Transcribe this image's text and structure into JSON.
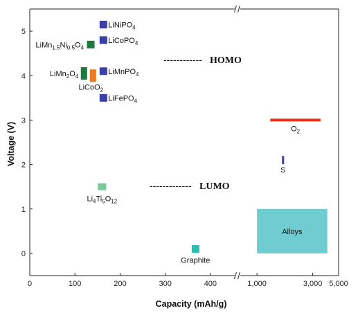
{
  "chart_data": {
    "type": "scatter",
    "xlabel": "Capacity (mAh/g)",
    "ylabel": "Voltage (V)",
    "ylim": [
      -0.5,
      5.5
    ],
    "y_ticks": [
      "0",
      "1",
      "2",
      "3",
      "4",
      "5"
    ],
    "x_ticks_linear": [
      "0",
      "100",
      "200",
      "300",
      "400"
    ],
    "x_ticks_log": [
      "1,000",
      "3,000",
      "5,000"
    ],
    "xlim_linear": [
      0,
      460
    ],
    "xlim_log": [
      700,
      5000
    ],
    "axis_break": true,
    "points": [
      {
        "id": "linipo4",
        "x": 163,
        "y": 5.15,
        "color": "#3b3fa6",
        "parts": [
          "LiNiPO",
          "4",
          ""
        ]
      },
      {
        "id": "licopo4",
        "x": 163,
        "y": 4.8,
        "color": "#3b3fa6",
        "parts": [
          "LiCoPO",
          "4",
          ""
        ]
      },
      {
        "id": "limnpo4",
        "x": 163,
        "y": 4.1,
        "color": "#3b3fa6",
        "parts": [
          "LiMnPO",
          "4",
          ""
        ]
      },
      {
        "id": "lifepo4",
        "x": 163,
        "y": 3.5,
        "color": "#3b3fa6",
        "parts": [
          "LiFePO",
          "4",
          ""
        ]
      },
      {
        "id": "limn15ni05o4",
        "x": 135,
        "y": 4.7,
        "color": "#1b7a3e",
        "parts": [
          "LiMn",
          "1.5",
          "Ni",
          "0.5",
          "O",
          "4",
          ""
        ]
      },
      {
        "id": "limn2o4",
        "x": 120,
        "y": 4.05,
        "color": "#1b7a3e",
        "parts": [
          "LiMn",
          "2",
          "O",
          "4",
          ""
        ]
      },
      {
        "id": "licoo2",
        "x": 140,
        "y": 4.0,
        "color": "#ee7a22",
        "parts": [
          "LiCoO",
          "2",
          ""
        ]
      },
      {
        "id": "li4ti5o12",
        "x": 160,
        "y": 1.5,
        "color": "#7bc898",
        "parts": [
          "Li",
          "4",
          "Ti",
          "5",
          "O",
          "12",
          ""
        ]
      },
      {
        "id": "graphite",
        "x": 367,
        "y": 0.1,
        "color": "#2bbfb3",
        "parts": [
          "Graphite"
        ]
      },
      {
        "id": "sulfur",
        "x": 1672,
        "y": 2.1,
        "color": "#3b3fa6",
        "parts": [
          "S"
        ]
      }
    ],
    "o2": {
      "x0": 1300,
      "x1": 3500,
      "y": 3.0,
      "color": "#e8321e",
      "parts": [
        "O",
        "2",
        ""
      ]
    },
    "alloys": {
      "x0": 1000,
      "x1": 4000,
      "y0": 0.0,
      "y1": 1.0,
      "color": "#6fcdd1",
      "label": "Alloys"
    },
    "annotations": {
      "homo_dashes": "------------",
      "homo": "HOMO",
      "lumo_dashes": "-------------",
      "lumo": "LUMO"
    }
  }
}
